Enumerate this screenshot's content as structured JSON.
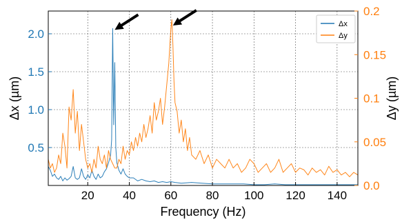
{
  "chart_data": {
    "type": "line",
    "title": "",
    "xlabel": "Frequency (Hz)",
    "ylabel_left": "Δx (µm)",
    "ylabel_right": "Δy (µm)",
    "xlim": [
      1,
      150
    ],
    "ylim_left": [
      0,
      2.3
    ],
    "ylim_right": [
      0,
      0.2
    ],
    "x_ticks": [
      20,
      40,
      60,
      80,
      100,
      120,
      140
    ],
    "x_tick_labels": [
      "20",
      "40",
      "60",
      "80",
      "100",
      "120",
      "140"
    ],
    "y_left_ticks": [
      0.5,
      1.0,
      1.5,
      2.0
    ],
    "y_left_tick_labels": [
      "0.5",
      "1.0",
      "1.5",
      "2.0"
    ],
    "y_right_ticks": [
      0.0,
      0.05,
      0.1,
      0.15,
      0.2
    ],
    "y_right_tick_labels": [
      "0.0",
      "0.05",
      "0.1",
      "0.15",
      "0.2"
    ],
    "grid": true,
    "legend_position": "top-right",
    "series": [
      {
        "name": "Δx",
        "axis": "left",
        "color": "#1f77b4",
        "x": [
          1,
          2,
          3,
          4,
          5,
          6,
          7,
          8,
          9,
          10,
          11,
          12,
          13,
          14,
          15,
          16,
          17,
          18,
          19,
          20,
          21,
          22,
          23,
          24,
          25,
          26,
          27,
          28,
          29,
          30,
          31,
          31.5,
          32,
          32.5,
          33,
          33.5,
          34,
          35,
          36,
          37,
          38,
          39,
          40,
          42,
          44,
          46,
          48,
          50,
          52,
          54,
          56,
          58,
          60,
          62,
          65,
          70,
          75,
          80,
          85,
          90,
          95,
          100,
          105,
          110,
          115,
          120,
          125,
          130,
          135,
          140,
          145,
          150
        ],
        "y": [
          0.25,
          0.2,
          0.12,
          0.15,
          0.1,
          0.08,
          0.12,
          0.06,
          0.1,
          0.07,
          0.09,
          0.12,
          0.25,
          0.1,
          0.08,
          0.1,
          0.22,
          0.12,
          0.08,
          0.14,
          0.1,
          0.2,
          0.12,
          0.08,
          0.15,
          0.1,
          0.12,
          0.18,
          0.22,
          0.3,
          0.4,
          0.6,
          2.07,
          0.8,
          1.62,
          0.5,
          0.3,
          0.2,
          0.15,
          0.22,
          0.15,
          0.12,
          0.1,
          0.1,
          0.06,
          0.08,
          0.06,
          0.05,
          0.06,
          0.04,
          0.05,
          0.04,
          0.05,
          0.04,
          0.03,
          0.04,
          0.03,
          0.02,
          0.02,
          0.02,
          0.02,
          0.01,
          0.01,
          0.02,
          0.01,
          0.01,
          0.01,
          0.01,
          0.01,
          0.01,
          0.01,
          0.01
        ]
      },
      {
        "name": "Δy",
        "axis": "right",
        "color": "#ff7f0e",
        "x": [
          1,
          2,
          3,
          4,
          5,
          6,
          7,
          8,
          9,
          10,
          11,
          12,
          13,
          14,
          15,
          16,
          17,
          18,
          19,
          20,
          21,
          22,
          23,
          24,
          25,
          26,
          27,
          28,
          29,
          30,
          31,
          32,
          33,
          34,
          35,
          36,
          37,
          38,
          39,
          40,
          41,
          42,
          43,
          44,
          45,
          46,
          47,
          48,
          49,
          50,
          51,
          52,
          53,
          54,
          55,
          56,
          57,
          58,
          59,
          60,
          60.5,
          61,
          61.5,
          62,
          63,
          64,
          65,
          66,
          67,
          68,
          69,
          70,
          72,
          74,
          76,
          78,
          80,
          82,
          84,
          86,
          88,
          90,
          92,
          94,
          96,
          98,
          100,
          102,
          104,
          106,
          108,
          110,
          112,
          114,
          116,
          118,
          120,
          122,
          124,
          126,
          128,
          130,
          132,
          134,
          136,
          138,
          140,
          142,
          144,
          146,
          148,
          150
        ],
        "y": [
          0.03,
          0.02,
          0.025,
          0.015,
          0.02,
          0.035,
          0.025,
          0.06,
          0.045,
          0.02,
          0.09,
          0.075,
          0.11,
          0.06,
          0.085,
          0.04,
          0.07,
          0.05,
          0.03,
          0.02,
          0.025,
          0.015,
          0.03,
          0.02,
          0.045,
          0.03,
          0.025,
          0.035,
          0.02,
          0.04,
          0.03,
          0.025,
          0.02,
          0.02,
          0.03,
          0.025,
          0.045,
          0.03,
          0.04,
          0.035,
          0.05,
          0.04,
          0.055,
          0.045,
          0.06,
          0.05,
          0.07,
          0.055,
          0.065,
          0.08,
          0.06,
          0.095,
          0.075,
          0.085,
          0.1,
          0.07,
          0.09,
          0.115,
          0.14,
          0.18,
          0.19,
          0.16,
          0.12,
          0.095,
          0.085,
          0.06,
          0.075,
          0.05,
          0.065,
          0.04,
          0.055,
          0.035,
          0.03,
          0.04,
          0.025,
          0.035,
          0.02,
          0.03,
          0.025,
          0.02,
          0.03,
          0.02,
          0.025,
          0.015,
          0.02,
          0.03,
          0.025,
          0.015,
          0.02,
          0.025,
          0.015,
          0.02,
          0.03,
          0.015,
          0.02,
          0.025,
          0.015,
          0.02,
          0.018,
          0.012,
          0.02,
          0.015,
          0.018,
          0.012,
          0.022,
          0.015,
          0.018,
          0.012,
          0.015,
          0.01,
          0.015,
          0.012
        ]
      }
    ],
    "annotations": [
      {
        "type": "arrow",
        "target_x": 32,
        "axis": "left",
        "target_y": 2.07
      },
      {
        "type": "arrow",
        "target_x": 60,
        "axis": "right",
        "target_y": 0.185
      }
    ]
  }
}
